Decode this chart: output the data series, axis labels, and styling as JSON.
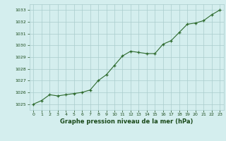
{
  "x": [
    0,
    1,
    2,
    3,
    4,
    5,
    6,
    7,
    8,
    9,
    10,
    11,
    12,
    13,
    14,
    15,
    16,
    17,
    18,
    19,
    20,
    21,
    22,
    23
  ],
  "y": [
    1025.0,
    1025.3,
    1025.8,
    1025.7,
    1025.8,
    1025.9,
    1026.0,
    1026.2,
    1027.0,
    1027.5,
    1028.3,
    1029.1,
    1029.5,
    1029.4,
    1029.3,
    1029.3,
    1030.1,
    1030.4,
    1031.1,
    1031.8,
    1031.9,
    1032.1,
    1032.6,
    1033.0
  ],
  "ylim": [
    1024.5,
    1033.5
  ],
  "xlim": [
    -0.5,
    23.5
  ],
  "yticks": [
    1025,
    1026,
    1027,
    1028,
    1029,
    1030,
    1031,
    1032,
    1033
  ],
  "xticks": [
    0,
    1,
    2,
    3,
    4,
    5,
    6,
    7,
    8,
    9,
    10,
    11,
    12,
    13,
    14,
    15,
    16,
    17,
    18,
    19,
    20,
    21,
    22,
    23
  ],
  "line_color": "#2d6a2d",
  "marker_color": "#2d6a2d",
  "bg_color": "#d4eeee",
  "grid_color": "#aacccc",
  "xlabel": "Graphe pression niveau de la mer (hPa)",
  "xlabel_color": "#1a4a1a",
  "tick_color": "#1a4a1a",
  "figsize": [
    3.2,
    2.0
  ],
  "dpi": 100
}
